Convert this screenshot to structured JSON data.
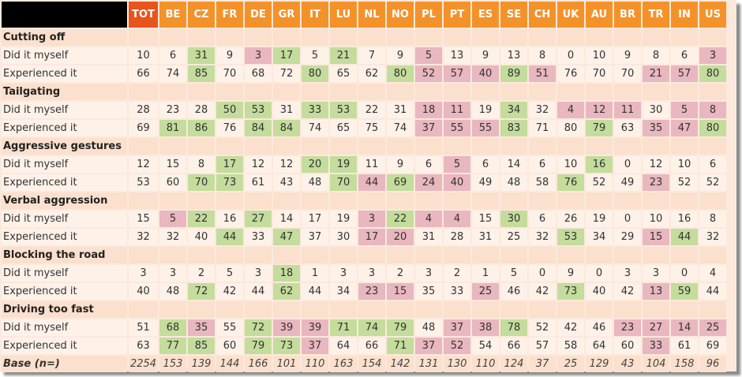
{
  "columns": [
    "TOT",
    "BE",
    "CZ",
    "FR",
    "DE",
    "GR",
    "IT",
    "LU",
    "NL",
    "NO",
    "PL",
    "PT",
    "ES",
    "SE",
    "CH",
    "UK",
    "AU",
    "BR",
    "TR",
    "IN",
    "US"
  ],
  "colors": {
    "header_bg": "#f4922a",
    "header_total_bg": "#e8541a",
    "section_bg": "#fbe0cd",
    "cell_bg": "#fdf1e8",
    "high_green": "#c4dc9c",
    "low_red": "#e9b7bf"
  },
  "sections": [
    {
      "title": "Cutting off",
      "rows": [
        {
          "label": "Did it myself",
          "values": [
            "10",
            "6",
            "31",
            "9",
            "3",
            "17",
            "5",
            "21",
            "7",
            "9",
            "5",
            "13",
            "9",
            "13",
            "8",
            "0",
            "10",
            "9",
            "8",
            "6",
            "3"
          ],
          "marks": [
            "",
            "",
            "g",
            "",
            "r",
            "g",
            "",
            "g",
            "",
            "",
            "r",
            "",
            "",
            "",
            "",
            "",
            "",
            "",
            "",
            "",
            "r"
          ]
        },
        {
          "label": "Experienced it",
          "values": [
            "66",
            "74",
            "85",
            "70",
            "68",
            "72",
            "80",
            "65",
            "62",
            "80",
            "52",
            "57",
            "40",
            "89",
            "51",
            "76",
            "70",
            "70",
            "21",
            "57",
            "80"
          ],
          "marks": [
            "",
            "",
            "g",
            "",
            "",
            "",
            "g",
            "",
            "",
            "g",
            "r",
            "r",
            "r",
            "g",
            "r",
            "",
            "",
            "",
            "r",
            "r",
            "g"
          ]
        }
      ]
    },
    {
      "title": "Tailgating",
      "rows": [
        {
          "label": "Did it myself",
          "values": [
            "28",
            "23",
            "28",
            "50",
            "53",
            "31",
            "33",
            "53",
            "22",
            "31",
            "18",
            "11",
            "19",
            "34",
            "32",
            "4",
            "12",
            "11",
            "30",
            "5",
            "8"
          ],
          "marks": [
            "",
            "",
            "",
            "g",
            "g",
            "",
            "g",
            "g",
            "",
            "",
            "r",
            "r",
            "",
            "g",
            "",
            "r",
            "r",
            "r",
            "",
            "r",
            "r"
          ]
        },
        {
          "label": "Experienced it",
          "values": [
            "69",
            "81",
            "86",
            "76",
            "84",
            "84",
            "74",
            "65",
            "75",
            "74",
            "37",
            "55",
            "55",
            "83",
            "71",
            "80",
            "79",
            "63",
            "35",
            "47",
            "80"
          ],
          "marks": [
            "",
            "g",
            "g",
            "",
            "g",
            "g",
            "",
            "",
            "",
            "",
            "r",
            "r",
            "r",
            "g",
            "",
            "",
            "g",
            "",
            "r",
            "r",
            "g"
          ]
        }
      ]
    },
    {
      "title": "Aggressive gestures",
      "rows": [
        {
          "label": "Did it myself",
          "values": [
            "12",
            "15",
            "8",
            "17",
            "12",
            "12",
            "20",
            "19",
            "11",
            "9",
            "6",
            "5",
            "6",
            "14",
            "6",
            "10",
            "16",
            "0",
            "12",
            "10",
            "6"
          ],
          "marks": [
            "",
            "",
            "",
            "g",
            "",
            "",
            "g",
            "g",
            "",
            "",
            "",
            "r",
            "",
            "",
            "",
            "",
            "g",
            "",
            "",
            "",
            ""
          ]
        },
        {
          "label": "Experienced it",
          "values": [
            "53",
            "60",
            "70",
            "73",
            "61",
            "43",
            "48",
            "70",
            "44",
            "69",
            "24",
            "40",
            "49",
            "48",
            "58",
            "76",
            "52",
            "49",
            "23",
            "52",
            "52"
          ],
          "marks": [
            "",
            "",
            "g",
            "g",
            "",
            "",
            "",
            "g",
            "r",
            "g",
            "r",
            "r",
            "",
            "",
            "",
            "g",
            "",
            "",
            "r",
            "",
            ""
          ]
        }
      ]
    },
    {
      "title": "Verbal aggression",
      "rows": [
        {
          "label": "Did it myself",
          "values": [
            "15",
            "5",
            "22",
            "16",
            "27",
            "14",
            "17",
            "19",
            "3",
            "22",
            "4",
            "4",
            "15",
            "30",
            "6",
            "26",
            "19",
            "0",
            "10",
            "16",
            "8"
          ],
          "marks": [
            "",
            "r",
            "g",
            "",
            "g",
            "",
            "",
            "",
            "r",
            "g",
            "r",
            "r",
            "",
            "g",
            "",
            "",
            "",
            "",
            "",
            "",
            ""
          ]
        },
        {
          "label": "Experienced it",
          "values": [
            "32",
            "32",
            "40",
            "44",
            "33",
            "47",
            "37",
            "30",
            "17",
            "20",
            "31",
            "28",
            "31",
            "25",
            "32",
            "53",
            "34",
            "29",
            "15",
            "44",
            "32"
          ],
          "marks": [
            "",
            "",
            "",
            "g",
            "",
            "g",
            "",
            "",
            "r",
            "r",
            "",
            "",
            "",
            "",
            "",
            "g",
            "",
            "",
            "r",
            "g",
            ""
          ]
        }
      ]
    },
    {
      "title": "Blocking the road",
      "rows": [
        {
          "label": "Did it myself",
          "values": [
            "3",
            "3",
            "2",
            "5",
            "3",
            "18",
            "1",
            "3",
            "3",
            "2",
            "3",
            "2",
            "1",
            "5",
            "0",
            "9",
            "0",
            "3",
            "3",
            "0",
            "4"
          ],
          "marks": [
            "",
            "",
            "",
            "",
            "",
            "g",
            "",
            "",
            "",
            "",
            "",
            "",
            "",
            "",
            "",
            "",
            "",
            "",
            "",
            "",
            ""
          ]
        },
        {
          "label": "Experienced it",
          "values": [
            "40",
            "48",
            "72",
            "42",
            "44",
            "62",
            "44",
            "34",
            "23",
            "15",
            "35",
            "33",
            "25",
            "46",
            "42",
            "73",
            "40",
            "42",
            "13",
            "59",
            "44"
          ],
          "marks": [
            "",
            "",
            "g",
            "",
            "",
            "g",
            "",
            "",
            "r",
            "r",
            "",
            "",
            "r",
            "",
            "",
            "g",
            "",
            "",
            "r",
            "g",
            ""
          ]
        }
      ]
    },
    {
      "title": "Driving too fast",
      "rows": [
        {
          "label": "Did it myself",
          "values": [
            "51",
            "68",
            "35",
            "55",
            "72",
            "39",
            "39",
            "71",
            "74",
            "79",
            "48",
            "37",
            "38",
            "78",
            "52",
            "42",
            "46",
            "23",
            "27",
            "14",
            "25"
          ],
          "marks": [
            "",
            "g",
            "r",
            "",
            "g",
            "r",
            "r",
            "g",
            "g",
            "g",
            "",
            "r",
            "r",
            "g",
            "",
            "",
            "",
            "r",
            "r",
            "r",
            "r"
          ]
        },
        {
          "label": "Experienced it",
          "values": [
            "63",
            "77",
            "85",
            "60",
            "79",
            "73",
            "37",
            "64",
            "66",
            "71",
            "37",
            "52",
            "54",
            "66",
            "57",
            "58",
            "64",
            "60",
            "33",
            "61",
            "69"
          ],
          "marks": [
            "",
            "g",
            "g",
            "",
            "g",
            "g",
            "r",
            "",
            "",
            "g",
            "r",
            "r",
            "",
            "",
            "",
            "",
            "",
            "",
            "r",
            "",
            ""
          ]
        }
      ]
    }
  ],
  "base": {
    "label": "Base (n=)",
    "values": [
      "2254",
      "153",
      "139",
      "144",
      "166",
      "101",
      "110",
      "163",
      "154",
      "142",
      "131",
      "130",
      "110",
      "124",
      "37",
      "25",
      "129",
      "43",
      "104",
      "158",
      "96"
    ]
  }
}
